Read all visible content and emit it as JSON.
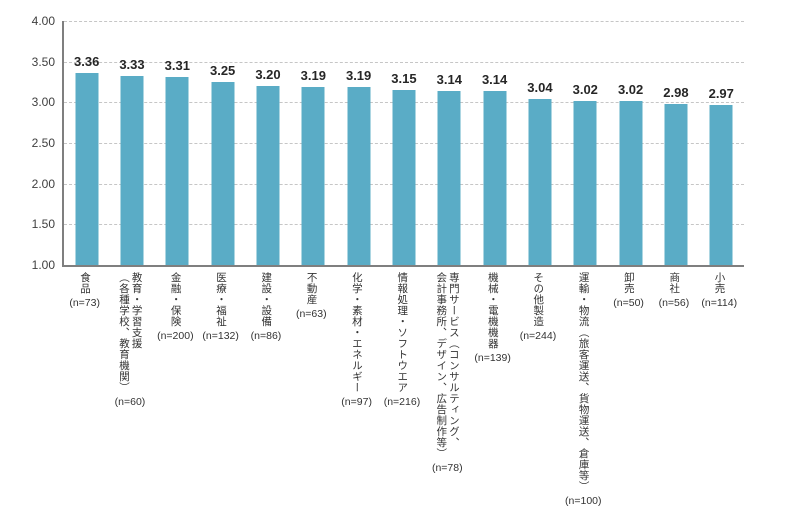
{
  "chart_data": {
    "type": "bar",
    "categories": [
      "食品",
      "教育・学習支援\n（各種学校、教育機関）",
      "金融・保険",
      "医療・福祉",
      "建設・設備",
      "不動産",
      "化学・素材・エネルギー",
      "情報処理・ソフトウエア",
      "専門サービス（コンサルティング、\n会計事務所、デザイン、広告制作等）",
      "機械・電機機器",
      "その他製造",
      "運輸・物流（旅客運送、貨物運送、倉庫等）",
      "卸売",
      "商社",
      "小売"
    ],
    "sample_sizes": [
      "(n=73)",
      "(n=60)",
      "(n=200)",
      "(n=132)",
      "(n=86)",
      "(n=63)",
      "(n=97)",
      "(n=216)",
      "(n=78)",
      "(n=139)",
      "(n=244)",
      "(n=100)",
      "(n=50)",
      "(n=56)",
      "(n=114)"
    ],
    "values": [
      3.36,
      3.33,
      3.31,
      3.25,
      3.2,
      3.19,
      3.19,
      3.15,
      3.14,
      3.14,
      3.04,
      3.02,
      3.02,
      2.98,
      2.97
    ],
    "value_labels": [
      "3.36",
      "3.33",
      "3.31",
      "3.25",
      "3.20",
      "3.19",
      "3.19",
      "3.15",
      "3.14",
      "3.14",
      "3.04",
      "3.02",
      "3.02",
      "2.98",
      "2.97"
    ],
    "y_ticks": [
      "4.00",
      "3.50",
      "3.00",
      "2.50",
      "2.00",
      "1.50",
      "1.00"
    ],
    "ylim": [
      1.0,
      4.0
    ],
    "grid": "horizontal-dashed",
    "legend": "none",
    "bar_color": "#5AACC6"
  }
}
